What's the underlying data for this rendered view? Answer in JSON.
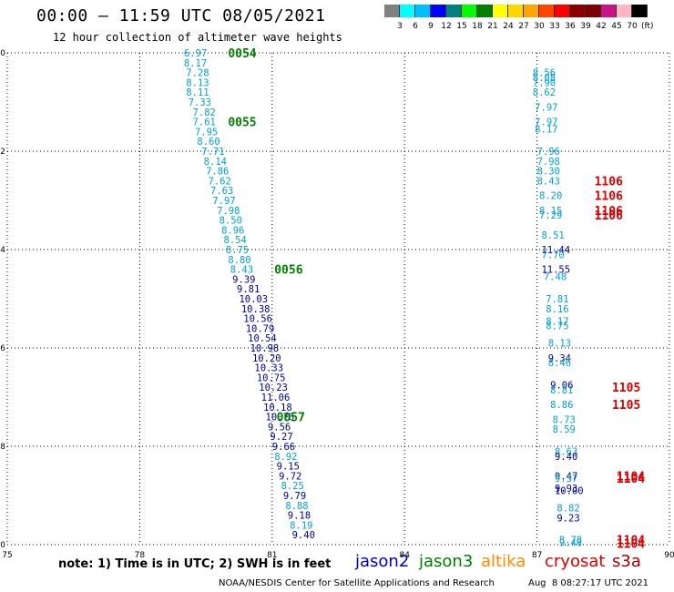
{
  "header": {
    "title": "00:00 – 11:59 UTC 08/05/2021",
    "subtitle": "12 hour collection of altimeter wave heights"
  },
  "colorbar": {
    "colors": [
      "#808080",
      "#00ffff",
      "#00bfff",
      "#0000ff",
      "#008080",
      "#00ff00",
      "#008000",
      "#ffff00",
      "#ffd700",
      "#ffa500",
      "#ff4500",
      "#ff0000",
      "#8b0000",
      "#800000",
      "#c71585",
      "#ffb6c1",
      "#000000"
    ],
    "labels": [
      "3",
      "6",
      "9",
      "12",
      "15",
      "18",
      "21",
      "24",
      "27",
      "30",
      "33",
      "36",
      "39",
      "42",
      "45",
      "70"
    ],
    "unit": "(ft)"
  },
  "axes": {
    "x_ticks": [
      "75",
      "78",
      "81",
      "84",
      "87",
      "90"
    ],
    "y_ticks": [
      "0",
      "-2",
      "-4",
      "-6",
      "-8",
      "-10"
    ]
  },
  "chart_data": {
    "type": "scatter",
    "x_range": [
      75,
      90
    ],
    "y_range": [
      -10,
      0
    ],
    "colors": {
      "light": "#00a0d8",
      "dark": "#0000a0",
      "pass_green": "#008000",
      "pass_red": "#dd0000"
    },
    "track1": {
      "points": [
        {
          "x": 79.0,
          "y": 0.0,
          "v": "6.97",
          "c": "light"
        },
        {
          "x": 79.0,
          "y": -0.2,
          "v": "8.17",
          "c": "light"
        },
        {
          "x": 79.05,
          "y": -0.4,
          "v": "7.28",
          "c": "light"
        },
        {
          "x": 79.05,
          "y": -0.6,
          "v": "8.13",
          "c": "light"
        },
        {
          "x": 79.05,
          "y": -0.8,
          "v": "8.11",
          "c": "light"
        },
        {
          "x": 79.1,
          "y": -1.0,
          "v": "7.33",
          "c": "light"
        },
        {
          "x": 79.2,
          "y": -1.2,
          "v": "7.82",
          "c": "light"
        },
        {
          "x": 79.2,
          "y": -1.4,
          "v": "7.61",
          "c": "light"
        },
        {
          "x": 79.25,
          "y": -1.6,
          "v": "7.95",
          "c": "light"
        },
        {
          "x": 79.3,
          "y": -1.8,
          "v": "8.60",
          "c": "light"
        },
        {
          "x": 79.4,
          "y": -2.0,
          "v": "7.71",
          "c": "light"
        },
        {
          "x": 79.45,
          "y": -2.2,
          "v": "8.14",
          "c": "light"
        },
        {
          "x": 79.5,
          "y": -2.4,
          "v": "7.86",
          "c": "light"
        },
        {
          "x": 79.55,
          "y": -2.6,
          "v": "7.62",
          "c": "light"
        },
        {
          "x": 79.6,
          "y": -2.8,
          "v": "7.63",
          "c": "light"
        },
        {
          "x": 79.65,
          "y": -3.0,
          "v": "7.97",
          "c": "light"
        },
        {
          "x": 79.75,
          "y": -3.2,
          "v": "7.98",
          "c": "light"
        },
        {
          "x": 79.8,
          "y": -3.4,
          "v": "8.50",
          "c": "light"
        },
        {
          "x": 79.85,
          "y": -3.6,
          "v": "8.96",
          "c": "light"
        },
        {
          "x": 79.9,
          "y": -3.8,
          "v": "8.54",
          "c": "light"
        },
        {
          "x": 79.95,
          "y": -4.0,
          "v": "8.75",
          "c": "light"
        },
        {
          "x": 80.0,
          "y": -4.2,
          "v": "8.80",
          "c": "light"
        },
        {
          "x": 80.05,
          "y": -4.4,
          "v": "8.43",
          "c": "light"
        },
        {
          "x": 80.1,
          "y": -4.6,
          "v": "9.39",
          "c": "dark"
        },
        {
          "x": 80.2,
          "y": -4.8,
          "v": "9.81",
          "c": "dark"
        },
        {
          "x": 80.25,
          "y": -5.0,
          "v": "10.03",
          "c": "dark"
        },
        {
          "x": 80.3,
          "y": -5.2,
          "v": "10.38",
          "c": "dark"
        },
        {
          "x": 80.35,
          "y": -5.4,
          "v": "10.56",
          "c": "dark"
        },
        {
          "x": 80.4,
          "y": -5.6,
          "v": "10.79",
          "c": "dark"
        },
        {
          "x": 80.45,
          "y": -5.8,
          "v": "10.54",
          "c": "dark"
        },
        {
          "x": 80.5,
          "y": -6.0,
          "v": "10.98",
          "c": "dark"
        },
        {
          "x": 80.55,
          "y": -6.2,
          "v": "10.20",
          "c": "dark"
        },
        {
          "x": 80.6,
          "y": -6.4,
          "v": "10.33",
          "c": "dark"
        },
        {
          "x": 80.65,
          "y": -6.6,
          "v": "10.75",
          "c": "dark"
        },
        {
          "x": 80.7,
          "y": -6.8,
          "v": "10.23",
          "c": "dark"
        },
        {
          "x": 80.75,
          "y": -7.0,
          "v": "11.06",
          "c": "dark"
        },
        {
          "x": 80.8,
          "y": -7.2,
          "v": "10.18",
          "c": "dark"
        },
        {
          "x": 80.85,
          "y": -7.4,
          "v": "10.76",
          "c": "dark"
        },
        {
          "x": 80.9,
          "y": -7.6,
          "v": "9.56",
          "c": "dark"
        },
        {
          "x": 80.95,
          "y": -7.8,
          "v": "9.27",
          "c": "dark"
        },
        {
          "x": 81.0,
          "y": -8.0,
          "v": "9.66",
          "c": "dark"
        },
        {
          "x": 81.05,
          "y": -8.2,
          "v": "8.92",
          "c": "light"
        },
        {
          "x": 81.1,
          "y": -8.4,
          "v": "9.15",
          "c": "dark"
        },
        {
          "x": 81.15,
          "y": -8.6,
          "v": "9.72",
          "c": "dark"
        },
        {
          "x": 81.2,
          "y": -8.8,
          "v": "8.25",
          "c": "light"
        },
        {
          "x": 81.25,
          "y": -9.0,
          "v": "9.79",
          "c": "dark"
        },
        {
          "x": 81.3,
          "y": -9.2,
          "v": "8.88",
          "c": "light"
        },
        {
          "x": 81.35,
          "y": -9.4,
          "v": "9.18",
          "c": "dark"
        },
        {
          "x": 81.4,
          "y": -9.6,
          "v": "8.19",
          "c": "light"
        },
        {
          "x": 81.45,
          "y": -9.8,
          "v": "9.40",
          "c": "dark"
        }
      ],
      "passes": [
        {
          "x": 80.0,
          "y": 0.0,
          "label": "0054"
        },
        {
          "x": 80.0,
          "y": -1.4,
          "label": "0055"
        },
        {
          "x": 81.05,
          "y": -4.4,
          "label": "0056"
        },
        {
          "x": 81.1,
          "y": -7.4,
          "label": "0057"
        }
      ]
    },
    "track2": {
      "points": [
        {
          "x": 86.9,
          "y": -0.4,
          "v": "8.56",
          "c": "light"
        },
        {
          "x": 86.9,
          "y": -0.5,
          "v": "8.08",
          "c": "light"
        },
        {
          "x": 86.9,
          "y": -0.6,
          "v": "7.90",
          "c": "light"
        },
        {
          "x": 86.9,
          "y": -0.8,
          "v": "8.62",
          "c": "light"
        },
        {
          "x": 86.95,
          "y": -1.1,
          "v": "7.97",
          "c": "light"
        },
        {
          "x": 86.95,
          "y": -1.4,
          "v": "7.97",
          "c": "light"
        },
        {
          "x": 86.95,
          "y": -1.55,
          "v": "8.17",
          "c": "light"
        },
        {
          "x": 87.0,
          "y": -2.0,
          "v": "7.96",
          "c": "light"
        },
        {
          "x": 87.0,
          "y": -2.2,
          "v": "7.98",
          "c": "light"
        },
        {
          "x": 87.0,
          "y": -2.4,
          "v": "8.30",
          "c": "light"
        },
        {
          "x": 87.0,
          "y": -2.6,
          "v": "8.43",
          "c": "light"
        },
        {
          "x": 87.05,
          "y": -2.9,
          "v": "8.20",
          "c": "light"
        },
        {
          "x": 87.05,
          "y": -3.2,
          "v": "8.15",
          "c": "light"
        },
        {
          "x": 87.05,
          "y": -3.3,
          "v": "7.29",
          "c": "light"
        },
        {
          "x": 87.1,
          "y": -3.7,
          "v": "8.51",
          "c": "light"
        },
        {
          "x": 87.1,
          "y": -4.0,
          "v": "11.44",
          "c": "dark"
        },
        {
          "x": 87.1,
          "y": -4.1,
          "v": "7.70",
          "c": "light"
        },
        {
          "x": 87.1,
          "y": -4.4,
          "v": "11.55",
          "c": "dark"
        },
        {
          "x": 87.15,
          "y": -4.55,
          "v": "7.48",
          "c": "light"
        },
        {
          "x": 87.2,
          "y": -5.0,
          "v": "7.81",
          "c": "light"
        },
        {
          "x": 87.2,
          "y": -5.2,
          "v": "8.16",
          "c": "light"
        },
        {
          "x": 87.2,
          "y": -5.45,
          "v": "8.17",
          "c": "light"
        },
        {
          "x": 87.2,
          "y": -5.55,
          "v": "8.75",
          "c": "light"
        },
        {
          "x": 87.25,
          "y": -5.9,
          "v": "8.13",
          "c": "light"
        },
        {
          "x": 87.25,
          "y": -6.2,
          "v": "9.34",
          "c": "dark"
        },
        {
          "x": 87.25,
          "y": -6.3,
          "v": "8.46",
          "c": "light"
        },
        {
          "x": 87.3,
          "y": -6.75,
          "v": "9.06",
          "c": "dark"
        },
        {
          "x": 87.3,
          "y": -6.85,
          "v": "8.81",
          "c": "light"
        },
        {
          "x": 87.3,
          "y": -7.15,
          "v": "8.86",
          "c": "light"
        },
        {
          "x": 87.35,
          "y": -7.45,
          "v": "8.73",
          "c": "light"
        },
        {
          "x": 87.35,
          "y": -7.65,
          "v": "8.59",
          "c": "light"
        },
        {
          "x": 87.4,
          "y": -8.1,
          "v": "8.63",
          "c": "light"
        },
        {
          "x": 87.4,
          "y": -8.2,
          "v": "9.40",
          "c": "dark"
        },
        {
          "x": 87.4,
          "y": -8.6,
          "v": "9.47",
          "c": "dark"
        },
        {
          "x": 87.4,
          "y": -8.65,
          "v": "9.37",
          "c": "light"
        },
        {
          "x": 87.4,
          "y": -8.85,
          "v": "9.93",
          "c": "dark"
        },
        {
          "x": 87.4,
          "y": -8.9,
          "v": "10.00",
          "c": "dark"
        },
        {
          "x": 87.45,
          "y": -9.25,
          "v": "8.82",
          "c": "light"
        },
        {
          "x": 87.45,
          "y": -9.45,
          "v": "9.23",
          "c": "dark"
        },
        {
          "x": 87.5,
          "y": -9.9,
          "v": "8.78",
          "c": "light"
        },
        {
          "x": 87.5,
          "y": -9.95,
          "v": "9.48",
          "c": "light"
        }
      ],
      "passes": [
        {
          "x": 88.3,
          "y": -2.6,
          "label": "1106"
        },
        {
          "x": 88.3,
          "y": -2.9,
          "label": "1106"
        },
        {
          "x": 88.3,
          "y": -3.2,
          "label": "1106"
        },
        {
          "x": 88.3,
          "y": -3.3,
          "label": "1106"
        },
        {
          "x": 88.7,
          "y": -6.8,
          "label": "1105"
        },
        {
          "x": 88.7,
          "y": -7.15,
          "label": "1105"
        },
        {
          "x": 88.8,
          "y": -8.6,
          "label": "1104"
        },
        {
          "x": 88.8,
          "y": -8.65,
          "label": "1104"
        },
        {
          "x": 88.8,
          "y": -9.9,
          "label": "1104"
        },
        {
          "x": 88.8,
          "y": -9.97,
          "label": "1104"
        }
      ]
    }
  },
  "notes": {
    "text": "note: 1) Time is in UTC; 2) SWH is in feet"
  },
  "legend": {
    "items": [
      {
        "label": "jason2",
        "color": "#0000cc"
      },
      {
        "label": "jason3",
        "color": "#008000"
      },
      {
        "label": "altika",
        "color": "#ff8c00"
      },
      {
        "label": "cryosat",
        "color": "#dd0000"
      },
      {
        "label": "s3a",
        "color": "#aa0000"
      }
    ]
  },
  "footer": {
    "credit": "NOAA/NESDIS Center for Satellite Applications and Research",
    "generated": "Aug  8 08:27:17 UTC 2021"
  }
}
